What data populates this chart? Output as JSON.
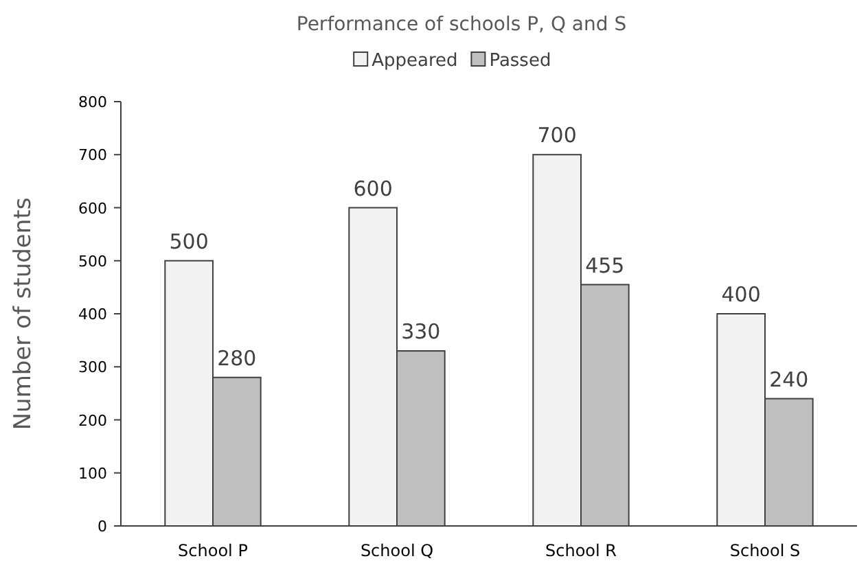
{
  "chart_data": {
    "type": "bar",
    "title": "Performance of schools P, Q and S",
    "ylabel": "Number of students",
    "categories": [
      "School P",
      "School Q",
      "School R",
      "School S"
    ],
    "series": [
      {
        "name": "Appeared",
        "color": "#f2f2f2",
        "values": [
          500,
          600,
          700,
          400
        ]
      },
      {
        "name": "Passed",
        "color": "#bfbfbf",
        "values": [
          280,
          330,
          455,
          240
        ]
      }
    ],
    "ylim": [
      0,
      800
    ],
    "yticks": [
      0,
      100,
      200,
      300,
      400,
      500,
      600,
      700,
      800
    ],
    "grid": false,
    "legend": "top",
    "data_labels": true
  }
}
